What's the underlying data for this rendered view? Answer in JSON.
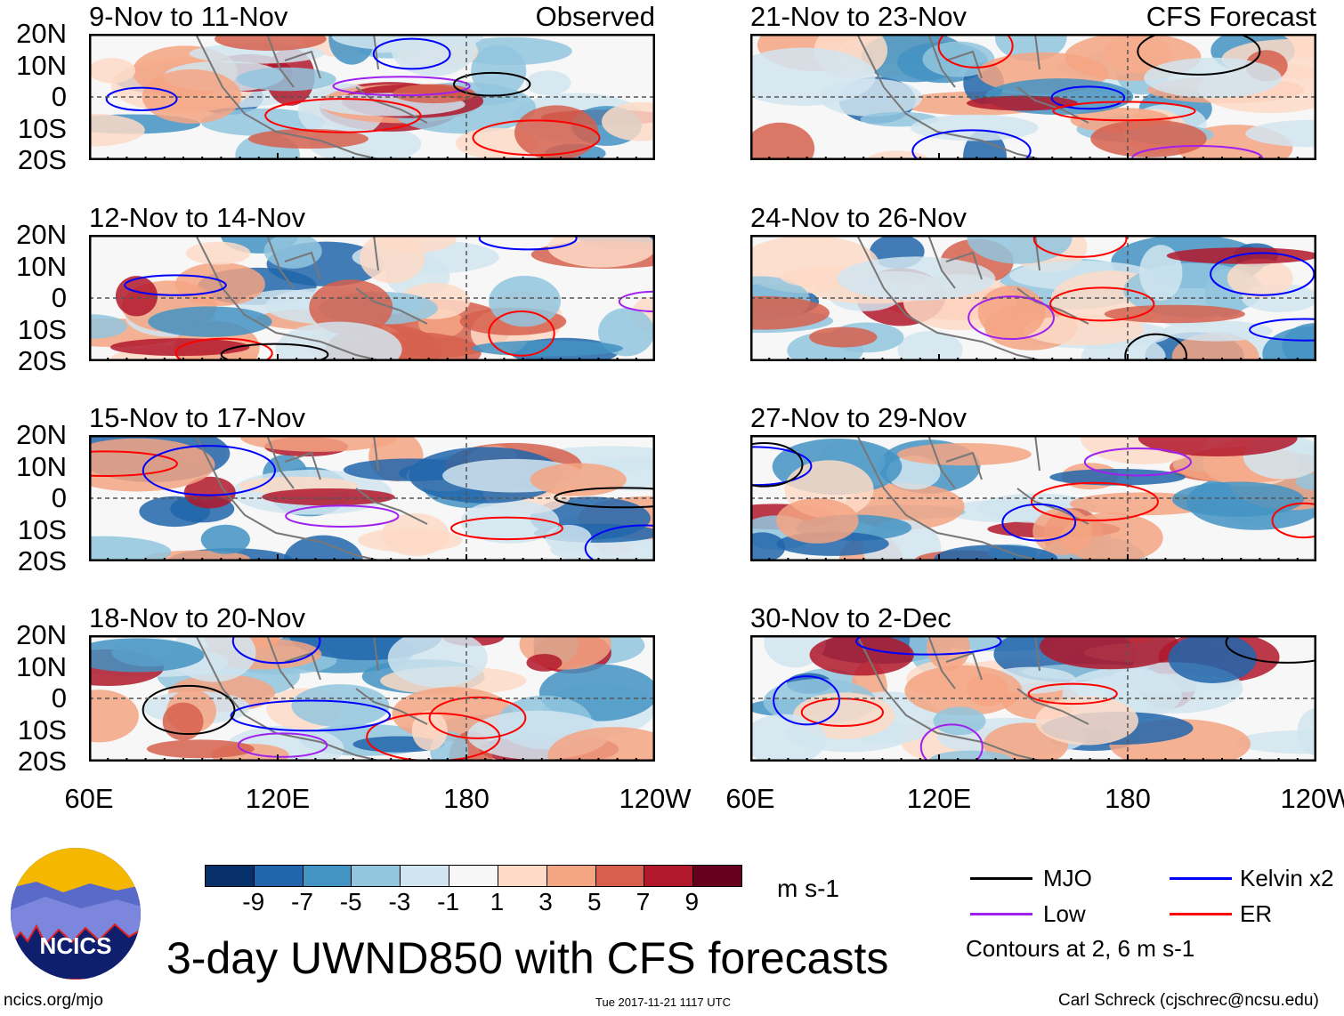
{
  "panels": [
    {
      "title": "9-Nov to 11-Nov",
      "label": "Observed",
      "col": 0,
      "row": 0,
      "seed": 3
    },
    {
      "title": "12-Nov to 14-Nov",
      "label": "",
      "col": 0,
      "row": 1,
      "seed": 7
    },
    {
      "title": "15-Nov to 17-Nov",
      "label": "",
      "col": 0,
      "row": 2,
      "seed": 11
    },
    {
      "title": "18-Nov to 20-Nov",
      "label": "",
      "col": 0,
      "row": 3,
      "seed": 19
    },
    {
      "title": "21-Nov to 23-Nov",
      "label": "CFS Forecast",
      "col": 1,
      "row": 0,
      "seed": 23
    },
    {
      "title": "24-Nov to 26-Nov",
      "label": "",
      "col": 1,
      "row": 1,
      "seed": 29
    },
    {
      "title": "27-Nov to 29-Nov",
      "label": "",
      "col": 1,
      "row": 2,
      "seed": 31
    },
    {
      "title": "30-Nov to 2-Dec",
      "label": "",
      "col": 1,
      "row": 3,
      "seed": 37
    }
  ],
  "lat_labels": [
    "20N",
    "10N",
    "0",
    "10S",
    "20S"
  ],
  "lon_labels": [
    "60E",
    "120E",
    "180",
    "120W"
  ],
  "colorbar": {
    "colors": [
      "#08306b",
      "#2166ac",
      "#4393c3",
      "#92c5de",
      "#d1e5f0",
      "#f7f7f7",
      "#fddbc7",
      "#f4a582",
      "#d6604d",
      "#b2182b",
      "#67001f"
    ],
    "ticks": [
      "-9",
      "-7",
      "-5",
      "-3",
      "-1",
      "1",
      "3",
      "5",
      "7",
      "9"
    ],
    "units": "m s-1"
  },
  "legend": {
    "items": [
      {
        "label": "MJO",
        "color": "#000000"
      },
      {
        "label": "Kelvin x2",
        "color": "#0000ff"
      },
      {
        "label": "Low",
        "color": "#a020f0"
      },
      {
        "label": "ER",
        "color": "#ff0000"
      }
    ],
    "note": "Contours at 2, 6 m s-1"
  },
  "title": "3-day UWND850 with CFS forecasts",
  "logo_text": "NCICS",
  "footer": {
    "url": "ncics.org/mjo",
    "timestamp": "Tue 2017-11-21 1117 UTC",
    "credit": "Carl Schreck (cjschrec@ncsu.edu)"
  }
}
